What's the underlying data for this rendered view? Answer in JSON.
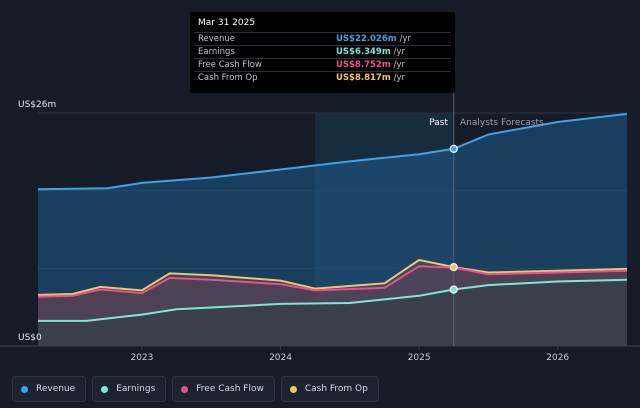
{
  "chart_data": {
    "type": "area",
    "ylim": [
      0,
      26
    ],
    "y_tick_labels": {
      "top": "US$26m",
      "bottom": "US$0"
    },
    "x_tick_labels": [
      "2023",
      "2024",
      "2025",
      "2026"
    ],
    "section_labels": {
      "past": "Past",
      "forecast": "Analysts Forecasts"
    },
    "series": [
      {
        "name": "Revenue",
        "color": "#3fa1e8",
        "points": [
          [
            2022.25,
            17.5
          ],
          [
            2022.75,
            17.6
          ],
          [
            2023.0,
            18.2
          ],
          [
            2023.5,
            18.8
          ],
          [
            2024.0,
            19.7
          ],
          [
            2024.5,
            20.6
          ],
          [
            2025.0,
            21.4
          ],
          [
            2025.25,
            22.0
          ],
          [
            2025.5,
            23.6
          ],
          [
            2026.0,
            25.0
          ],
          [
            2026.5,
            25.9
          ]
        ]
      },
      {
        "name": "Earnings",
        "color": "#7ee6d4",
        "points": [
          [
            2022.25,
            2.8
          ],
          [
            2022.6,
            2.8
          ],
          [
            2023.0,
            3.5
          ],
          [
            2023.25,
            4.1
          ],
          [
            2023.75,
            4.5
          ],
          [
            2024.0,
            4.7
          ],
          [
            2024.5,
            4.8
          ],
          [
            2025.0,
            5.6
          ],
          [
            2025.25,
            6.3
          ],
          [
            2025.5,
            6.8
          ],
          [
            2026.0,
            7.2
          ],
          [
            2026.5,
            7.4
          ]
        ]
      },
      {
        "name": "Free Cash Flow",
        "color": "#e6528d",
        "points": [
          [
            2022.25,
            5.5
          ],
          [
            2022.5,
            5.6
          ],
          [
            2022.7,
            6.3
          ],
          [
            2023.0,
            5.9
          ],
          [
            2023.2,
            7.6
          ],
          [
            2023.5,
            7.4
          ],
          [
            2024.0,
            6.9
          ],
          [
            2024.25,
            6.2
          ],
          [
            2024.75,
            6.5
          ],
          [
            2025.0,
            8.9
          ],
          [
            2025.25,
            8.75
          ],
          [
            2025.5,
            8.0
          ],
          [
            2026.0,
            8.2
          ],
          [
            2026.5,
            8.4
          ]
        ]
      },
      {
        "name": "Cash From Op",
        "color": "#f2c36b",
        "points": [
          [
            2022.25,
            5.7
          ],
          [
            2022.5,
            5.8
          ],
          [
            2022.7,
            6.6
          ],
          [
            2023.0,
            6.2
          ],
          [
            2023.2,
            8.1
          ],
          [
            2023.5,
            7.9
          ],
          [
            2024.0,
            7.3
          ],
          [
            2024.25,
            6.4
          ],
          [
            2024.75,
            7.0
          ],
          [
            2025.0,
            9.6
          ],
          [
            2025.25,
            8.8
          ],
          [
            2025.5,
            8.2
          ],
          [
            2026.0,
            8.4
          ],
          [
            2026.5,
            8.6
          ]
        ]
      }
    ],
    "highlight_x": 2025.25,
    "forecast_start_x": 2025.25,
    "shaded_region_x": [
      2024.25,
      2025.25
    ],
    "legend_placement": "bottom-left",
    "grid": true
  },
  "tooltip": {
    "date": "Mar 31 2025",
    "rows": [
      {
        "label": "Revenue",
        "value": "US$22.026m",
        "unit": "/yr",
        "color": "#3fa1e8"
      },
      {
        "label": "Earnings",
        "value": "US$6.349m",
        "unit": "/yr",
        "color": "#7ee6d4"
      },
      {
        "label": "Free Cash Flow",
        "value": "US$8.752m",
        "unit": "/yr",
        "color": "#e6528d"
      },
      {
        "label": "Cash From Op",
        "value": "US$8.817m",
        "unit": "/yr",
        "color": "#f2c36b"
      }
    ]
  },
  "legend": [
    {
      "label": "Revenue",
      "color": "#3fa1e8"
    },
    {
      "label": "Earnings",
      "color": "#7ee6d4"
    },
    {
      "label": "Free Cash Flow",
      "color": "#e6528d"
    },
    {
      "label": "Cash From Op",
      "color": "#f2c36b"
    }
  ]
}
